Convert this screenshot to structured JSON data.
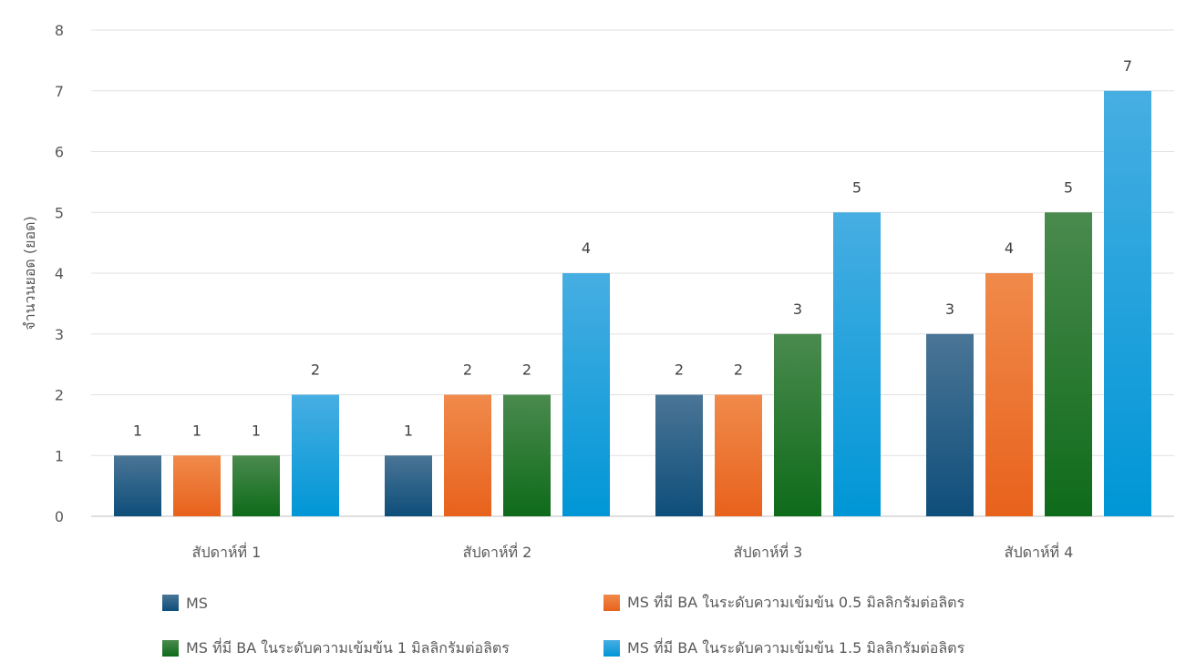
{
  "chart_data": {
    "type": "bar",
    "ylabel": "จำนวนยอด (ยอด)",
    "ylim": [
      0,
      8
    ],
    "yticks": [
      0,
      1,
      2,
      3,
      4,
      5,
      6,
      7,
      8
    ],
    "grid": true,
    "legend_position": "bottom",
    "categories": [
      "สัปดาห์ที่ 1",
      "สัปดาห์ที่ 2",
      "สัปดาห์ที่ 3",
      "สัปดาห์ที่ 4"
    ],
    "series": [
      {
        "name": "MS",
        "values": [
          1,
          1,
          2,
          3
        ],
        "color_top": "#4a7596",
        "color_bottom": "#0e4e7a"
      },
      {
        "name": "MS ที่มี BA ในระดับความเข้มข้น 0.5 มิลลิกรัมต่อลิตร",
        "values": [
          1,
          2,
          2,
          4
        ],
        "color_top": "#f08a4b",
        "color_bottom": "#e8621c"
      },
      {
        "name": "MS ที่มี BA ในระดับความเข้มข้น 1 มิลลิกรัมต่อลิตร",
        "values": [
          1,
          2,
          3,
          5
        ],
        "color_top": "#4a8a4e",
        "color_bottom": "#0e6b1a"
      },
      {
        "name": "MS ที่มี BA ในระดับความเข้มข้น 1.5 มิลลิกรัมต่อลิตร",
        "values": [
          2,
          4,
          5,
          7
        ],
        "color_top": "#47aee2",
        "color_bottom": "#0096d6"
      }
    ]
  }
}
